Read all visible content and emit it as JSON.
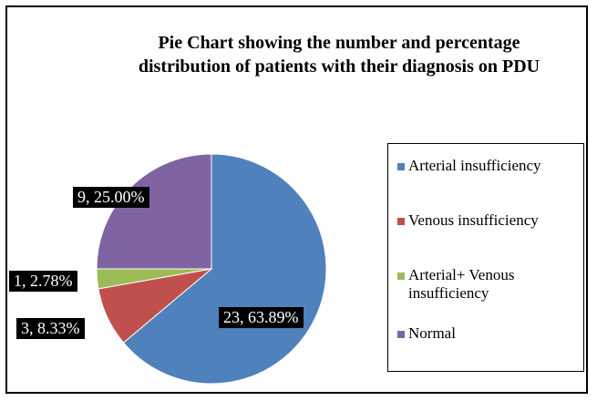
{
  "chart_data": {
    "type": "pie",
    "title": "Pie Chart showing the number and percentage distribution of patients with their diagnosis on PDU",
    "categories": [
      "Arterial insufficiency",
      "Venous insufficiency",
      "Arterial+ Venous insufficiency",
      "Normal"
    ],
    "values": [
      23,
      3,
      1,
      9
    ],
    "value_labels": [
      "23, 63.89%",
      "3, 8.33%",
      "1, 2.78%",
      "9, 25.00%"
    ],
    "colors": [
      "#4f81bd",
      "#c0504d",
      "#9bbb59",
      "#8064a2"
    ],
    "legend": "right"
  }
}
